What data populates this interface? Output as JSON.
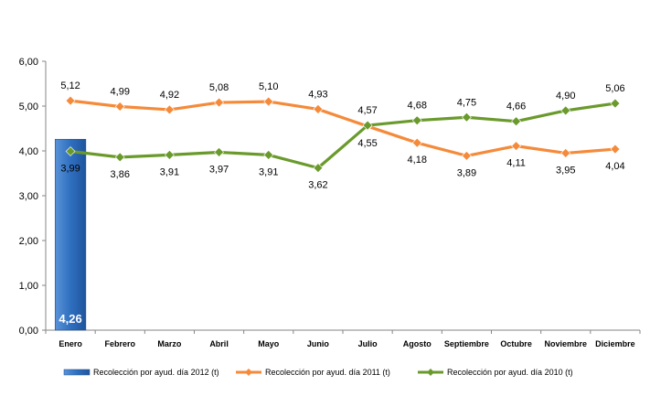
{
  "chart_data": {
    "type": "bar+line",
    "categories": [
      "Enero",
      "Febrero",
      "Marzo",
      "Abril",
      "Mayo",
      "Junio",
      "Julio",
      "Agosto",
      "Septiembre",
      "Octubre",
      "Noviembre",
      "Diciembre"
    ],
    "y_ticks": [
      "0,00",
      "1,00",
      "2,00",
      "3,00",
      "4,00",
      "5,00",
      "6,00"
    ],
    "ylim": [
      0,
      6
    ],
    "grid": false,
    "legend_position": "bottom",
    "series": [
      {
        "name": "Recolección por ayud. día 2012 (t)",
        "kind": "bar",
        "color": "#2f6fc0",
        "values": [
          4.26,
          null,
          null,
          null,
          null,
          null,
          null,
          null,
          null,
          null,
          null,
          null
        ],
        "labels": [
          "4,26"
        ]
      },
      {
        "name": "Recolección por ayud. día 2011 (t)",
        "kind": "line",
        "color": "#f58a3a",
        "values": [
          5.12,
          4.99,
          4.92,
          5.08,
          5.1,
          4.93,
          4.55,
          4.18,
          3.89,
          4.11,
          3.95,
          4.04
        ],
        "labels": [
          "5,12",
          "4,99",
          "4,92",
          "5,08",
          "5,10",
          "4,93",
          "4,55",
          "4,18",
          "3,89",
          "4,11",
          "3,95",
          "4,04"
        ]
      },
      {
        "name": "Recolección por ayud. día 2010 (t)",
        "kind": "line",
        "color": "#6a9a2c",
        "values": [
          3.99,
          3.86,
          3.91,
          3.97,
          3.91,
          3.62,
          4.57,
          4.68,
          4.75,
          4.66,
          4.9,
          5.06
        ],
        "labels": [
          "3,99",
          "3,86",
          "3,91",
          "3,97",
          "3,91",
          "3,62",
          "4,57",
          "4,68",
          "4,75",
          "4,66",
          "4,90",
          "5,06"
        ]
      }
    ]
  }
}
